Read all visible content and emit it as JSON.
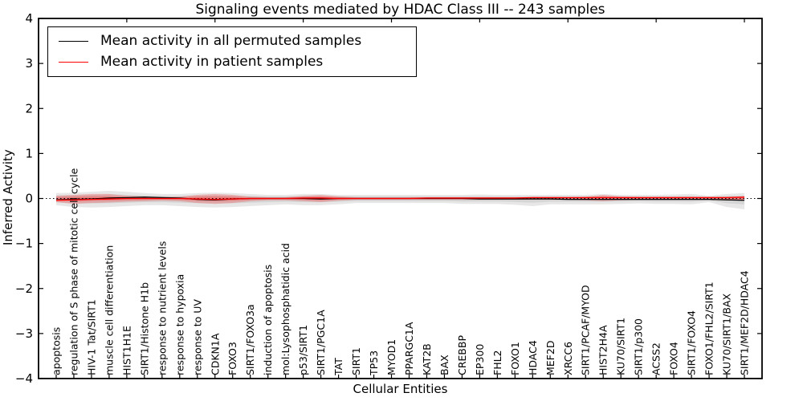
{
  "chart_data": {
    "type": "line",
    "title": "Signaling events mediated by HDAC Class III -- 243 samples",
    "xlabel": "Cellular Entities",
    "ylabel": "Inferred Activity",
    "ylim": [
      -4,
      4
    ],
    "yticks": [
      -4,
      -3,
      -2,
      -1,
      0,
      1,
      2,
      3,
      4
    ],
    "ytick_labels": [
      "−4",
      "−3",
      "−2",
      "−1",
      "0",
      "1",
      "2",
      "3",
      "4"
    ],
    "top_tick_positions": [
      5,
      10,
      15,
      20,
      25,
      30,
      35,
      40
    ],
    "grid": false,
    "legend": {
      "position": "upper-left",
      "entries": [
        {
          "label": "Mean activity in all permuted samples",
          "color": "#000000"
        },
        {
          "label": "Mean activity in patient samples",
          "color": "#ff0000"
        }
      ]
    },
    "zero_line": {
      "y": 0,
      "color": "#000000",
      "style": "dotted"
    },
    "categories": [
      "apoptosis",
      "regulation of S phase of mitotic cell cycle",
      "HIV-1 Tat/SIRT1",
      "muscle cell differentiation",
      "HIST1H1E",
      "SIRT1/Histone H1b",
      "response to nutrient levels",
      "response to hypoxia",
      "response to UV",
      "CDKN1A",
      "FOXO3",
      "SIRT1/FOXO3a",
      "induction of apoptosis",
      "mol:Lysophosphatidic acid",
      "p53/SIRT1",
      "SIRT1/PGC1A",
      "TAT",
      "SIRT1",
      "TP53",
      "MYOD1",
      "PPARGC1A",
      "KAT2B",
      "BAX",
      "CREBBP",
      "EP300",
      "FHL2",
      "FOXO1",
      "HDAC4",
      "MEF2D",
      "XRCC6",
      "SIRT1/PCAF/MYOD",
      "HIST2H4A",
      "KU70/SIRT1",
      "SIRT1/p300",
      "ACSS2",
      "FOXO4",
      "SIRT1/FOXO4",
      "FOXO1/FHL2/SIRT1",
      "KU70/SIRT1/BAX",
      "SIRT1/MEF2D/HDAC4"
    ],
    "series": [
      {
        "name": "Mean activity in all permuted samples",
        "color": "#000000",
        "values": [
          -0.03,
          -0.02,
          -0.01,
          0.01,
          0.02,
          0.03,
          0.02,
          0.01,
          -0.02,
          -0.03,
          -0.01,
          0,
          0,
          0,
          0,
          -0.01,
          0,
          0,
          0,
          0,
          0,
          0,
          0,
          0,
          -0.01,
          -0.01,
          -0.01,
          -0.01,
          -0.01,
          -0.02,
          -0.02,
          -0.02,
          -0.02,
          -0.02,
          -0.02,
          -0.02,
          -0.02,
          -0.02,
          -0.03,
          -0.04
        ]
      },
      {
        "name": "Mean activity in patient samples",
        "color": "#ff0000",
        "values": [
          -0.04,
          -0.03,
          -0.02,
          -0.01,
          0,
          0,
          0,
          0,
          -0.01,
          -0.02,
          -0.01,
          0,
          0,
          0,
          0.01,
          0.01,
          0,
          0,
          0,
          0,
          0,
          0.01,
          0.01,
          0.01,
          0.01,
          0.01,
          0.01,
          0.02,
          0.02,
          0.02,
          0.02,
          0.02,
          0.02,
          0.02,
          0.02,
          0.02,
          0.02,
          0.02,
          0.02,
          0.03
        ]
      }
    ],
    "bands": [
      {
        "name": "permuted-range",
        "color": "#aaaaaa",
        "opacity": 0.28,
        "layers": [
          1,
          0.55
        ],
        "upper": [
          0.12,
          0.13,
          0.15,
          0.17,
          0.15,
          0.12,
          0.1,
          0.1,
          0.12,
          0.13,
          0.12,
          0.1,
          0.08,
          0.08,
          0.1,
          0.1,
          0.08,
          0.08,
          0.08,
          0.08,
          0.08,
          0.08,
          0.08,
          0.08,
          0.09,
          0.08,
          0.08,
          0.08,
          0.08,
          0.08,
          0.08,
          0.1,
          0.08,
          0.08,
          0.08,
          0.09,
          0.1,
          0.06,
          0.1,
          0.12
        ],
        "lower": [
          -0.15,
          -0.19,
          -0.2,
          -0.19,
          -0.17,
          -0.15,
          -0.15,
          -0.17,
          -0.19,
          -0.2,
          -0.19,
          -0.17,
          -0.15,
          -0.13,
          -0.15,
          -0.15,
          -0.13,
          -0.1,
          -0.1,
          -0.1,
          -0.1,
          -0.1,
          -0.1,
          -0.12,
          -0.12,
          -0.12,
          -0.14,
          -0.17,
          -0.13,
          -0.13,
          -0.13,
          -0.13,
          -0.12,
          -0.11,
          -0.12,
          -0.12,
          -0.13,
          -0.08,
          -0.19,
          -0.24
        ]
      },
      {
        "name": "patient-range",
        "color": "#ff0000",
        "opacity": 0.22,
        "layers": [
          1,
          0.5
        ],
        "upper": [
          0.06,
          0.08,
          0.1,
          0.1,
          0.06,
          0.04,
          0.03,
          0.04,
          0.08,
          0.1,
          0.08,
          0.04,
          0.03,
          0.03,
          0.06,
          0.08,
          0.05,
          0.03,
          0.03,
          0.03,
          0.03,
          0.03,
          0.03,
          0.03,
          0.03,
          0.03,
          0.03,
          0.03,
          0.03,
          0.03,
          0.04,
          0.08,
          0.05,
          0.04,
          0.04,
          0.04,
          0.04,
          0.04,
          0.04,
          0.05
        ],
        "lower": [
          -0.08,
          -0.12,
          -0.1,
          -0.09,
          -0.07,
          -0.06,
          -0.05,
          -0.06,
          -0.1,
          -0.12,
          -0.1,
          -0.06,
          -0.04,
          -0.04,
          -0.06,
          -0.08,
          -0.05,
          -0.03,
          -0.03,
          -0.03,
          -0.03,
          -0.03,
          -0.03,
          -0.03,
          -0.03,
          -0.03,
          -0.03,
          -0.03,
          -0.03,
          -0.03,
          -0.04,
          -0.06,
          -0.04,
          -0.03,
          -0.03,
          -0.03,
          -0.03,
          -0.03,
          -0.04,
          -0.05
        ]
      }
    ]
  }
}
